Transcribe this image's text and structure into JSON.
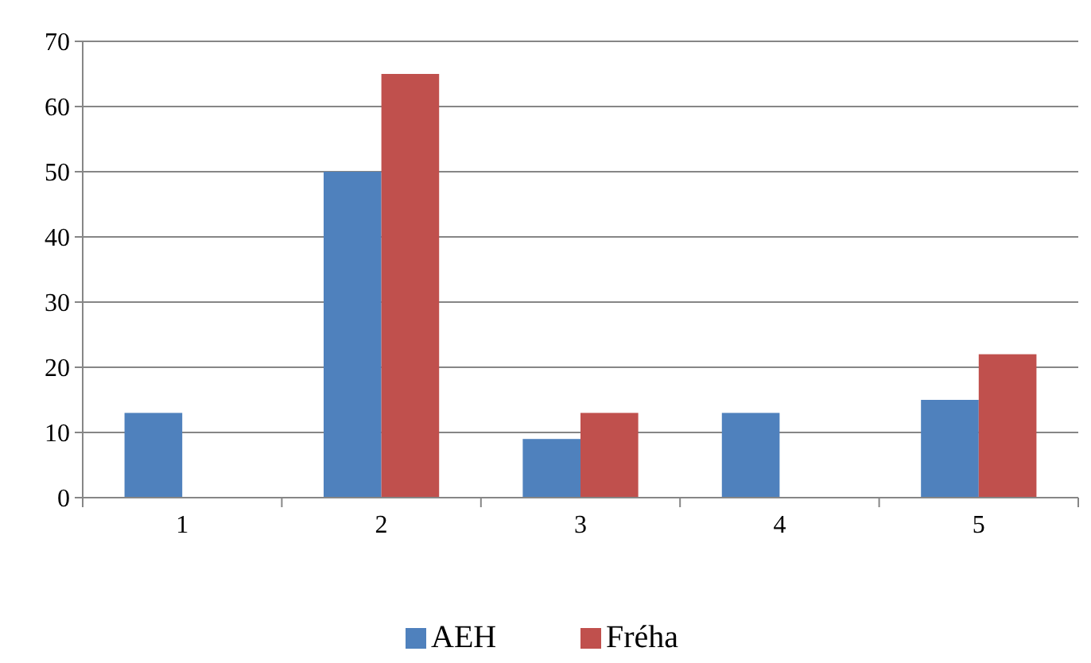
{
  "chart_data": {
    "type": "bar",
    "categories": [
      "1",
      "2",
      "3",
      "4",
      "5"
    ],
    "series": [
      {
        "name": "AEH",
        "color": "#4f81bd",
        "values": [
          13,
          50,
          9,
          13,
          15
        ]
      },
      {
        "name": "Fréha",
        "color": "#c0504d",
        "values": [
          null,
          65,
          13,
          null,
          22
        ]
      }
    ],
    "ylim": [
      0,
      70
    ],
    "yticks": [
      0,
      10,
      20,
      30,
      40,
      50,
      60,
      70
    ],
    "grid": "y",
    "legend": "bottom"
  }
}
